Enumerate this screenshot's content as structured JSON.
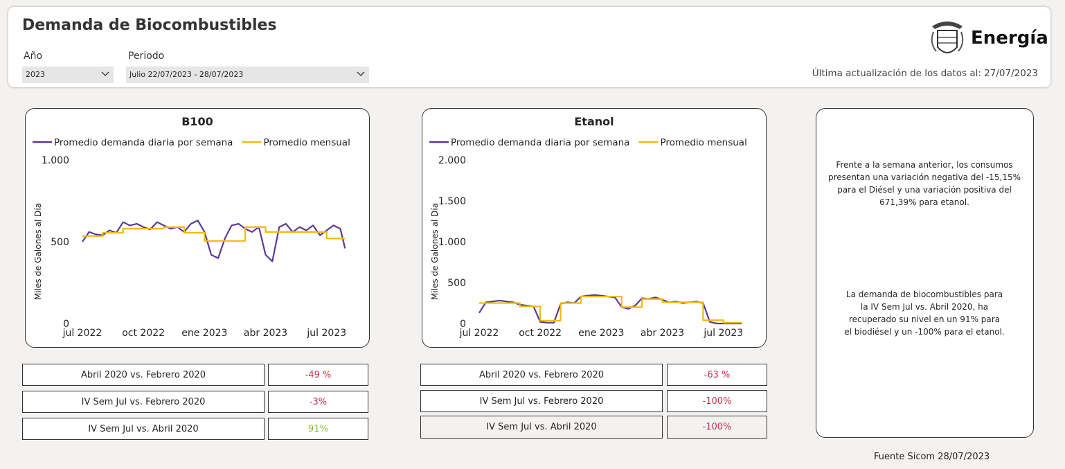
{
  "header": {
    "title": "Demanda de Biocombustibles",
    "year_label": "Año",
    "year_value": "2023",
    "period_label": "Periodo",
    "period_value": "Julio 22/07/2023 - 28/07/2023",
    "logo_text": "Energía",
    "update_text": "Última actualización de los datos al: 27/07/2023"
  },
  "chart_data": [
    {
      "type": "line",
      "title": "B100",
      "y_label": "Miles de Galones al Día",
      "grid": false,
      "xlim": [
        -0.1,
        13.3
      ],
      "xticks": [
        {
          "value": 0,
          "label": "jul 2022"
        },
        {
          "value": 3,
          "label": "oct 2022"
        },
        {
          "value": 6,
          "label": "ene 2023"
        },
        {
          "value": 9,
          "label": "abr 2023"
        },
        {
          "value": 12,
          "label": "jul 2023"
        }
      ],
      "ylim": [
        0,
        1000
      ],
      "yticks": [
        0,
        500,
        {
          "value": 1000,
          "label": "1.000"
        }
      ],
      "series": [
        {
          "name": "Promedio demanda diaria por semana",
          "color": "#5b3a96",
          "x": [
            0,
            0.33,
            0.67,
            1,
            1.33,
            1.67,
            2,
            2.33,
            2.67,
            3,
            3.33,
            3.67,
            4,
            4.33,
            4.67,
            5,
            5.33,
            5.67,
            6,
            6.33,
            6.67,
            7,
            7.33,
            7.67,
            8,
            8.33,
            8.67,
            9,
            9.33,
            9.67,
            10,
            10.33,
            10.67,
            11,
            11.33,
            11.67,
            12,
            12.33,
            12.67,
            12.9
          ],
          "values": [
            500,
            560,
            545,
            540,
            570,
            555,
            620,
            600,
            610,
            590,
            575,
            620,
            600,
            580,
            590,
            560,
            610,
            630,
            560,
            420,
            400,
            520,
            600,
            610,
            580,
            560,
            590,
            420,
            380,
            590,
            610,
            560,
            590,
            570,
            600,
            540,
            570,
            600,
            580,
            460
          ]
        },
        {
          "name": "Promedio mensual",
          "color": "#f2b90f",
          "line_style": "step",
          "x": [
            0,
            1,
            2,
            3,
            4,
            5,
            6,
            7,
            8,
            9,
            10,
            11,
            12
          ],
          "values": [
            535,
            555,
            580,
            580,
            590,
            555,
            505,
            505,
            590,
            560,
            560,
            560,
            520
          ]
        }
      ]
    },
    {
      "type": "line",
      "title": "Etanol",
      "y_label": "Miles de Galones al Día",
      "grid": false,
      "xlim": [
        -0.1,
        13.3
      ],
      "xticks": [
        {
          "value": 0,
          "label": "jul 2022"
        },
        {
          "value": 3,
          "label": "oct 2022"
        },
        {
          "value": 6,
          "label": "ene 2023"
        },
        {
          "value": 9,
          "label": "abr 2023"
        },
        {
          "value": 12,
          "label": "jul 2023"
        }
      ],
      "ylim": [
        0,
        2000
      ],
      "yticks": [
        0,
        500,
        {
          "value": 1000,
          "label": "1.000"
        },
        {
          "value": 1500,
          "label": "1.500"
        },
        {
          "value": 2000,
          "label": "2.000"
        }
      ],
      "series": [
        {
          "name": "Promedio demanda diaria por semana",
          "color": "#5b3a96",
          "x": [
            0,
            0.33,
            0.67,
            1,
            1.33,
            1.67,
            2,
            2.33,
            2.67,
            3,
            3.33,
            3.67,
            4,
            4.33,
            4.67,
            5,
            5.33,
            5.67,
            6,
            6.33,
            6.67,
            7,
            7.33,
            7.67,
            8,
            8.33,
            8.67,
            9,
            9.33,
            9.67,
            10,
            10.33,
            10.67,
            11,
            11.33,
            11.67,
            12,
            12.33,
            12.67,
            12.9
          ],
          "values": [
            130,
            260,
            270,
            280,
            270,
            260,
            230,
            220,
            210,
            20,
            10,
            10,
            240,
            260,
            250,
            330,
            340,
            350,
            340,
            330,
            320,
            200,
            180,
            220,
            310,
            300,
            320,
            290,
            260,
            270,
            250,
            260,
            270,
            250,
            20,
            0,
            0,
            0,
            0,
            0
          ]
        },
        {
          "name": "Promedio mensual",
          "color": "#f2b90f",
          "line_style": "step",
          "x": [
            0,
            1,
            2,
            3,
            4,
            5,
            6,
            7,
            8,
            9,
            10,
            11,
            12
          ],
          "values": [
            250,
            250,
            210,
            35,
            250,
            330,
            330,
            200,
            300,
            260,
            260,
            40,
            10
          ]
        }
      ]
    }
  ],
  "tables": [
    {
      "rows": [
        {
          "label": "Abril 2020 vs. Febrero 2020",
          "value": "-49 %",
          "color": "#c4314b"
        },
        {
          "label": "IV Sem Jul vs. Febrero 2020",
          "value": "-3%",
          "color": "#c4314b"
        },
        {
          "label": "IV Sem Jul vs. Abril 2020",
          "value": "91%",
          "color": "#8cbd3f"
        }
      ]
    },
    {
      "rows": [
        {
          "label": "Abril 2020 vs. Febrero 2020",
          "value": "-63 %",
          "color": "#c4314b"
        },
        {
          "label": "IV Sem Jul vs. Febrero 2020",
          "value": "-100%",
          "color": "#c4314b"
        },
        {
          "label": "IV Sem Jul vs. Abril 2020",
          "value": "-100%",
          "color": "#c4314b"
        }
      ]
    }
  ],
  "notes": [
    "Frente a la semana anterior, los consumos presentan una variación negativa del -15,15% para el Diésel y una variación positiva del 671,39% para etanol.",
    "La demanda de biocombustibles para la IV Sem Jul vs. Abril 2020, ha recuperado  su nivel en un 91% para el biodiésel y un -100% para el etanol."
  ],
  "footer": "Fuente Sicom 28/07/2023"
}
